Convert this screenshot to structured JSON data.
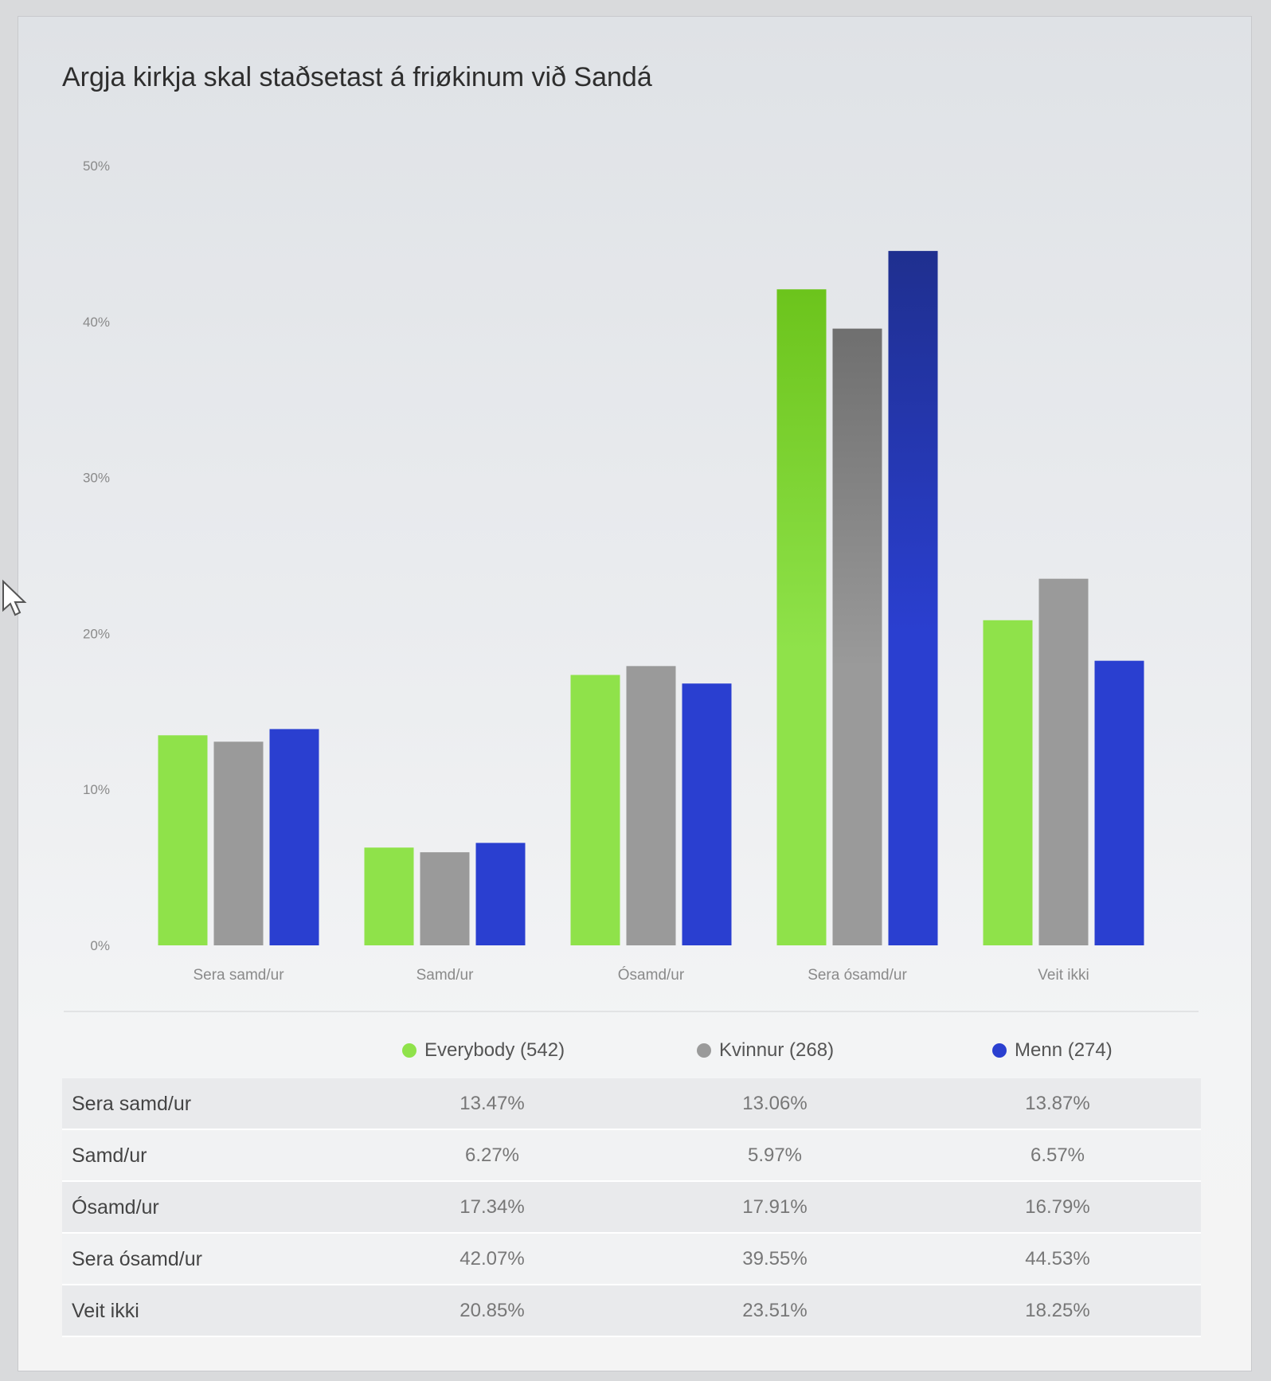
{
  "chart_data": {
    "type": "bar",
    "title": "Argja kirkja skal staðsetast á friøkinum við Sandá",
    "categories": [
      "Sera samd/ur",
      "Samd/ur",
      "Ósamd/ur",
      "Sera ósamd/ur",
      "Veit ikki"
    ],
    "y_ticks": [
      "0%",
      "10%",
      "20%",
      "30%",
      "40%",
      "50%"
    ],
    "ylim": [
      0,
      50
    ],
    "series": [
      {
        "name": "Everybody (542)",
        "color": "#8fe24a",
        "values": [
          13.47,
          6.27,
          17.34,
          42.07,
          20.85
        ]
      },
      {
        "name": "Kvinnur (268)",
        "color": "#9a9a9a",
        "values": [
          13.06,
          5.97,
          17.91,
          39.55,
          23.51
        ]
      },
      {
        "name": "Menn (274)",
        "color": "#2a3fd0",
        "values": [
          13.87,
          6.57,
          16.79,
          44.53,
          18.25
        ]
      }
    ],
    "legend_position": "bottom"
  },
  "table": {
    "rows": [
      {
        "label": "Sera samd/ur",
        "values": [
          "13.47%",
          "13.06%",
          "13.87%"
        ]
      },
      {
        "label": "Samd/ur",
        "values": [
          "6.27%",
          "5.97%",
          "6.57%"
        ]
      },
      {
        "label": "Ósamd/ur",
        "values": [
          "17.34%",
          "17.91%",
          "16.79%"
        ]
      },
      {
        "label": "Sera ósamd/ur",
        "values": [
          "42.07%",
          "39.55%",
          "44.53%"
        ]
      },
      {
        "label": "Veit ikki",
        "values": [
          "20.85%",
          "23.51%",
          "18.25%"
        ]
      }
    ]
  }
}
